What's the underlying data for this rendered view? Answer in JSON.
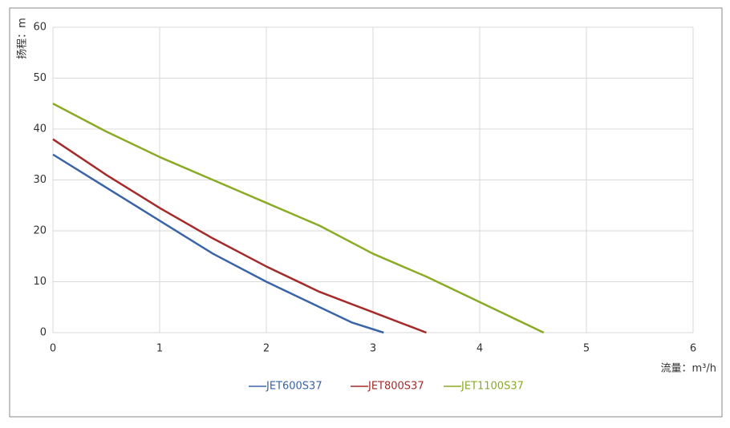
{
  "chart_data": {
    "type": "line",
    "y_label": "扬程：m",
    "x_label": "流量：m³/h",
    "xlim": [
      0,
      6
    ],
    "xticks": [
      0,
      1,
      2,
      3,
      4,
      5,
      6
    ],
    "ylim": [
      0,
      60
    ],
    "yticks": [
      0,
      10,
      20,
      30,
      40,
      50,
      60
    ],
    "grid": true,
    "legend": "bottom",
    "series": [
      {
        "name": "JET600S37",
        "color": "#3a64a8",
        "x": [
          0,
          0.5,
          1,
          1.5,
          2,
          2.5,
          2.8,
          3.1
        ],
        "values": [
          35,
          28.5,
          22,
          15.5,
          10,
          5,
          2,
          0
        ]
      },
      {
        "name": "JET800S37",
        "color": "#a52a2a",
        "x": [
          0,
          0.5,
          1,
          1.5,
          2,
          2.5,
          3,
          3.5
        ],
        "values": [
          38,
          31,
          24.5,
          18.5,
          13,
          8,
          4,
          0
        ]
      },
      {
        "name": "JET1100S37",
        "color": "#8aab25",
        "x": [
          0,
          0.5,
          1,
          1.5,
          2,
          2.5,
          3,
          3.5,
          4,
          4.6
        ],
        "values": [
          45,
          39.5,
          34.5,
          30,
          25.5,
          21,
          15.5,
          11,
          6,
          0
        ]
      }
    ]
  }
}
